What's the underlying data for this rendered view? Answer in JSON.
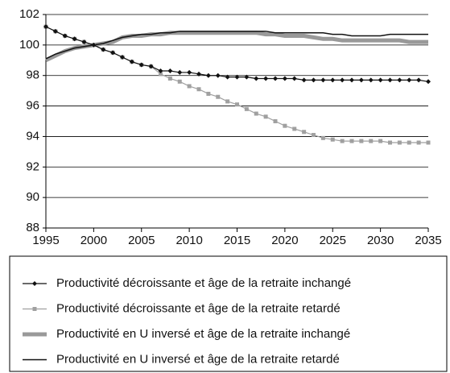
{
  "chart_data": {
    "type": "line",
    "x": [
      1995,
      1996,
      1997,
      1998,
      1999,
      2000,
      2001,
      2002,
      2003,
      2004,
      2005,
      2006,
      2007,
      2008,
      2009,
      2010,
      2011,
      2012,
      2013,
      2014,
      2015,
      2016,
      2017,
      2018,
      2019,
      2020,
      2021,
      2022,
      2023,
      2024,
      2025,
      2026,
      2027,
      2028,
      2029,
      2030,
      2031,
      2032,
      2033,
      2034,
      2035
    ],
    "xlim": [
      1995,
      2035
    ],
    "xticks": [
      1995,
      2000,
      2005,
      2010,
      2015,
      2020,
      2025,
      2030,
      2035
    ],
    "ylim": [
      88,
      102
    ],
    "yticks": [
      88,
      90,
      92,
      94,
      96,
      98,
      100,
      102
    ],
    "grid": true,
    "series": [
      {
        "name": "Productivité décroissante et âge de la retraite inchangé",
        "color": "#111111",
        "marker": "diamond",
        "line_width": 1.2,
        "values": [
          101.2,
          100.9,
          100.6,
          100.4,
          100.2,
          100.0,
          99.7,
          99.5,
          99.2,
          98.9,
          98.7,
          98.6,
          98.3,
          98.3,
          98.2,
          98.2,
          98.1,
          98.0,
          98.0,
          97.9,
          97.9,
          97.9,
          97.8,
          97.8,
          97.8,
          97.8,
          97.8,
          97.7,
          97.7,
          97.7,
          97.7,
          97.7,
          97.7,
          97.7,
          97.7,
          97.7,
          97.7,
          97.7,
          97.7,
          97.7,
          97.6
        ]
      },
      {
        "name": "Productivité décroissante et âge de la retraite retardé",
        "color": "#a0a0a0",
        "marker": "square",
        "line_width": 1.2,
        "values": [
          101.2,
          100.9,
          100.6,
          100.4,
          100.2,
          100.0,
          99.7,
          99.5,
          99.2,
          98.9,
          98.7,
          98.6,
          98.1,
          97.8,
          97.6,
          97.3,
          97.1,
          96.8,
          96.6,
          96.3,
          96.1,
          95.8,
          95.5,
          95.3,
          95.0,
          94.7,
          94.5,
          94.3,
          94.1,
          93.9,
          93.8,
          93.7,
          93.7,
          93.7,
          93.7,
          93.7,
          93.6,
          93.6,
          93.6,
          93.6,
          93.6
        ]
      },
      {
        "name": "Productivité en U inversé et âge de la retraite inchangé",
        "color": "#999999",
        "marker": "none",
        "line_width": 5,
        "values": [
          99.0,
          99.3,
          99.6,
          99.8,
          99.9,
          100.0,
          100.1,
          100.2,
          100.5,
          100.6,
          100.6,
          100.7,
          100.7,
          100.8,
          100.8,
          100.8,
          100.8,
          100.8,
          100.8,
          100.8,
          100.8,
          100.8,
          100.8,
          100.7,
          100.7,
          100.6,
          100.6,
          100.6,
          100.5,
          100.4,
          100.4,
          100.3,
          100.3,
          100.3,
          100.3,
          100.3,
          100.3,
          100.3,
          100.2,
          100.2,
          100.2
        ]
      },
      {
        "name": "Productivité en U inversé et âge de la retraite retardé",
        "color": "#111111",
        "marker": "none",
        "line_width": 1.5,
        "values": [
          99.1,
          99.4,
          99.6,
          99.8,
          99.9,
          100.0,
          100.1,
          100.3,
          100.5,
          100.6,
          100.7,
          100.7,
          100.8,
          100.8,
          100.9,
          100.9,
          100.9,
          100.9,
          100.9,
          100.9,
          100.9,
          100.9,
          100.9,
          100.9,
          100.8,
          100.8,
          100.8,
          100.8,
          100.8,
          100.8,
          100.7,
          100.7,
          100.6,
          100.6,
          100.6,
          100.6,
          100.7,
          100.7,
          100.7,
          100.7,
          100.7
        ]
      }
    ]
  }
}
